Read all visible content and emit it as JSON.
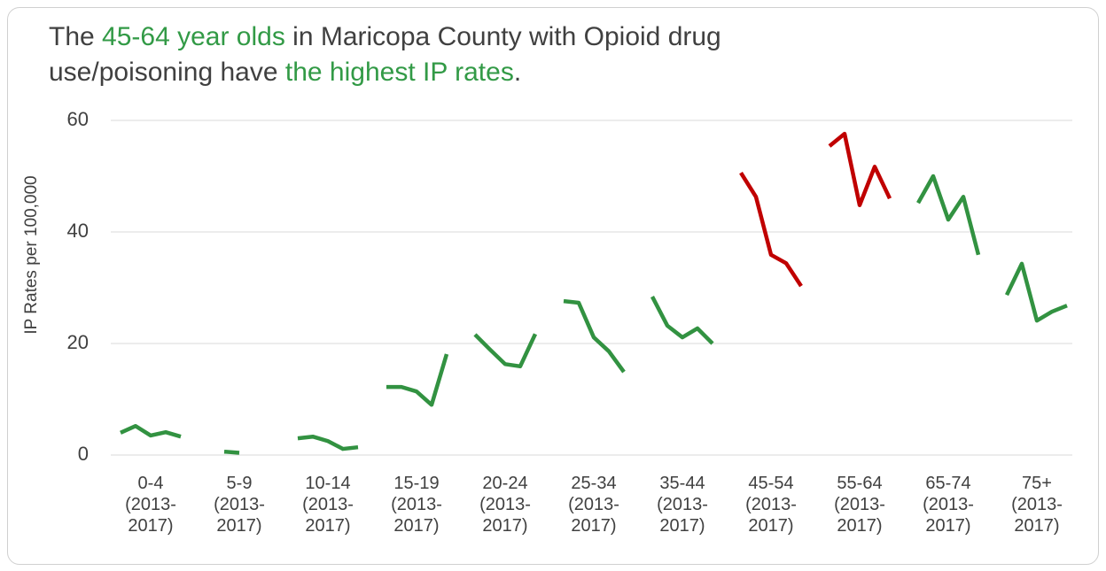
{
  "chart_data": {
    "type": "line",
    "title_parts": [
      {
        "text": "The "
      },
      {
        "text": "45-64 year olds",
        "color": "#329a46"
      },
      {
        "text": " in Maricopa County with Opioid drug use/poisoning have "
      },
      {
        "text": "the highest IP rates",
        "color": "#329a46"
      },
      {
        "text": "."
      }
    ],
    "y_label": "IP Rates per 100,000",
    "ylim": [
      0,
      60
    ],
    "yticks": [
      0,
      20,
      40,
      60
    ],
    "grid": true,
    "groups": [
      {
        "label": "0-4 (2013-2017)",
        "color": "#329241",
        "values": [
          4.0,
          5.2,
          3.5,
          4.1,
          3.3
        ]
      },
      {
        "label": "5-9 (2013-2017)",
        "color": "#329241",
        "values": [
          null,
          0.6,
          0.4,
          null,
          null
        ]
      },
      {
        "label": "10-14 (2013-2017)",
        "color": "#329241",
        "values": [
          3.0,
          3.3,
          2.5,
          1.1,
          1.4
        ]
      },
      {
        "label": "15-19 (2013-2017)",
        "color": "#329241",
        "values": [
          12.2,
          12.2,
          11.4,
          9.0,
          18.1
        ]
      },
      {
        "label": "20-24 (2013-2017)",
        "color": "#329241",
        "values": [
          21.6,
          18.9,
          16.3,
          15.9,
          21.7
        ]
      },
      {
        "label": "25-34 (2013-2017)",
        "color": "#329241",
        "values": [
          27.6,
          27.3,
          21.1,
          18.6,
          14.9
        ]
      },
      {
        "label": "35-44 (2013-2017)",
        "color": "#329241",
        "values": [
          28.4,
          23.2,
          21.1,
          22.7,
          20.0
        ]
      },
      {
        "label": "45-54 (2013-2017)",
        "color": "#c00000",
        "values": [
          50.6,
          46.3,
          35.9,
          34.4,
          30.3
        ]
      },
      {
        "label": "55-64 (2013-2017)",
        "color": "#c00000",
        "values": [
          55.4,
          57.6,
          44.8,
          51.7,
          46.0
        ]
      },
      {
        "label": "65-74 (2013-2017)",
        "color": "#329241",
        "values": [
          45.2,
          50.0,
          42.2,
          46.3,
          35.9
        ]
      },
      {
        "label": "75+ (2013-2017)",
        "color": "#329241",
        "values": [
          28.7,
          34.3,
          24.1,
          25.7,
          26.8
        ]
      }
    ]
  }
}
